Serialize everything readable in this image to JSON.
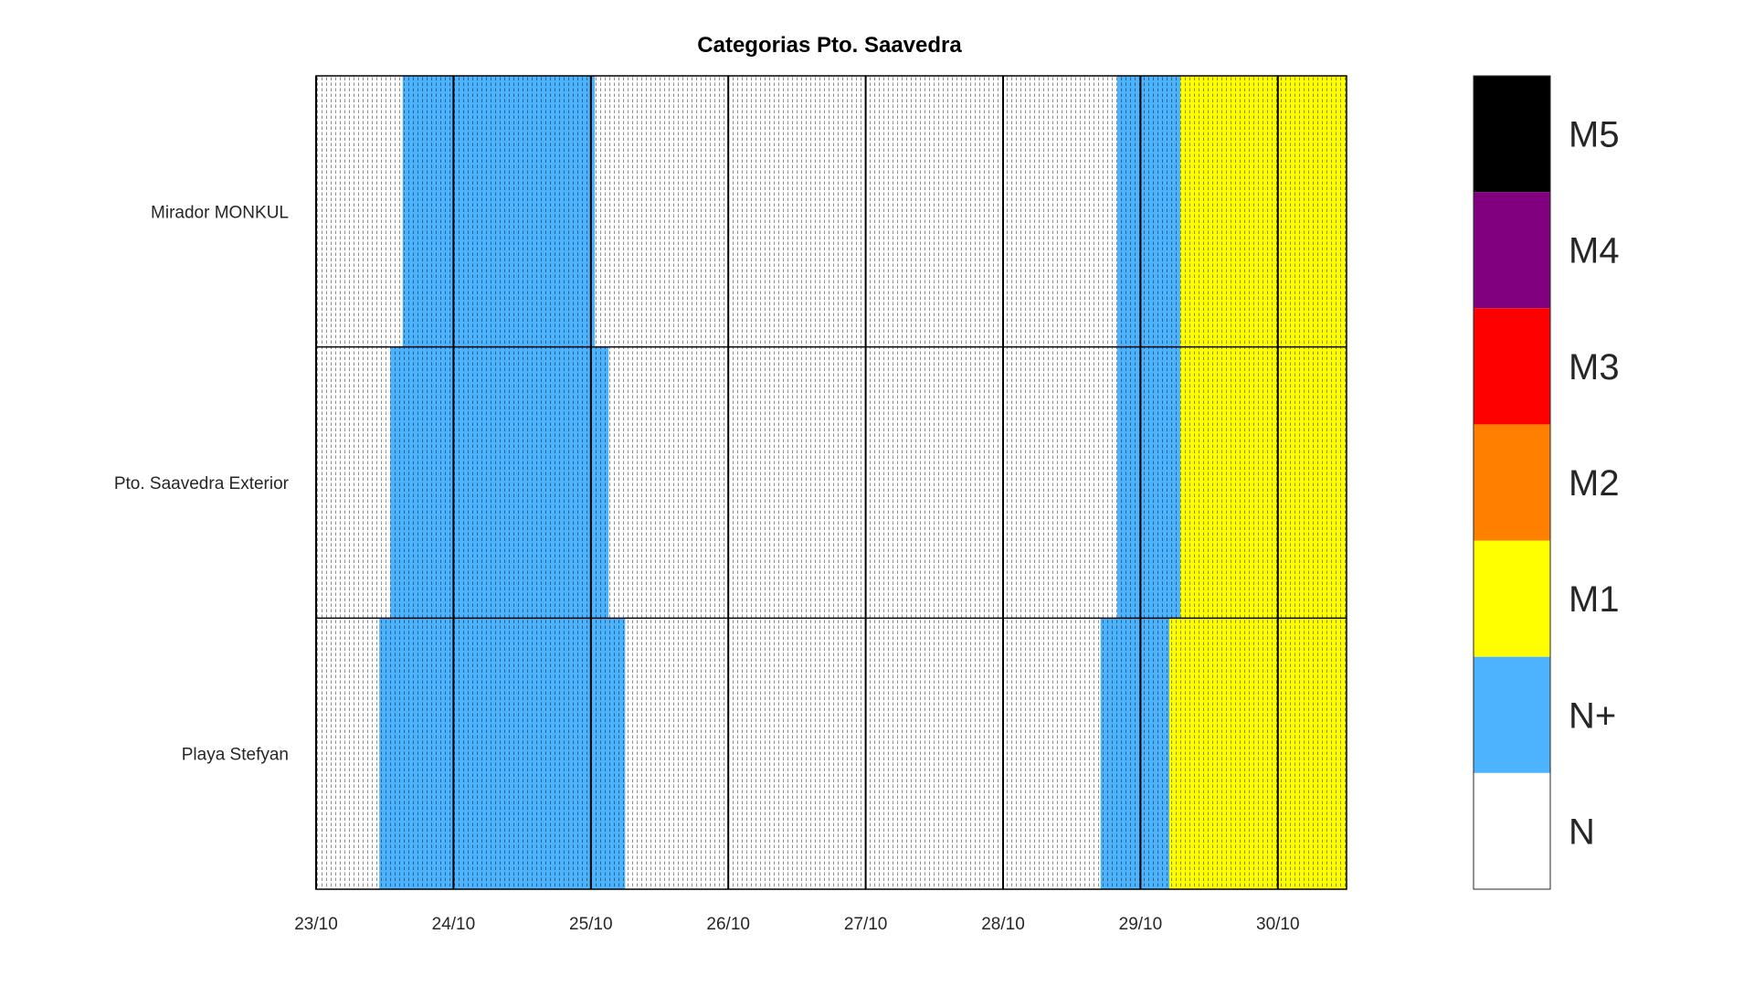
{
  "chart_data": {
    "type": "heatmap",
    "title": "Categorias Pto. Saavedra",
    "xlabel": "",
    "ylabel": "",
    "x_ticks": [
      "23/10",
      "24/10",
      "25/10",
      "26/10",
      "27/10",
      "28/10",
      "29/10",
      "30/10"
    ],
    "x_range_days": [
      0,
      7.5
    ],
    "rows": [
      {
        "name": "Mirador MONKUL",
        "segments": [
          {
            "start": 0.0,
            "end": 0.63,
            "category": "N"
          },
          {
            "start": 0.63,
            "end": 2.03,
            "category": "N+"
          },
          {
            "start": 2.03,
            "end": 5.83,
            "category": "N"
          },
          {
            "start": 5.83,
            "end": 6.29,
            "category": "N+"
          },
          {
            "start": 6.29,
            "end": 7.5,
            "category": "M1"
          }
        ]
      },
      {
        "name": "Pto. Saavedra Exterior",
        "segments": [
          {
            "start": 0.0,
            "end": 0.54,
            "category": "N"
          },
          {
            "start": 0.54,
            "end": 2.13,
            "category": "N+"
          },
          {
            "start": 2.13,
            "end": 5.83,
            "category": "N"
          },
          {
            "start": 5.83,
            "end": 6.29,
            "category": "N+"
          },
          {
            "start": 6.29,
            "end": 7.5,
            "category": "M1"
          }
        ]
      },
      {
        "name": "Playa Stefyan",
        "segments": [
          {
            "start": 0.0,
            "end": 0.46,
            "category": "N"
          },
          {
            "start": 0.46,
            "end": 2.25,
            "category": "N+"
          },
          {
            "start": 2.25,
            "end": 5.71,
            "category": "N"
          },
          {
            "start": 5.71,
            "end": 6.21,
            "category": "N+"
          },
          {
            "start": 6.21,
            "end": 7.5,
            "category": "M1"
          }
        ]
      }
    ],
    "categories": [
      {
        "label": "M5",
        "color": "#000000"
      },
      {
        "label": "M4",
        "color": "#800080"
      },
      {
        "label": "M3",
        "color": "#ff0000"
      },
      {
        "label": "M2",
        "color": "#ff8000"
      },
      {
        "label": "M1",
        "color": "#ffff00"
      },
      {
        "label": "N+",
        "color": "#4db3ff"
      },
      {
        "label": "N",
        "color": "#ffffff"
      }
    ],
    "legend_placement": "right",
    "grid": true
  }
}
